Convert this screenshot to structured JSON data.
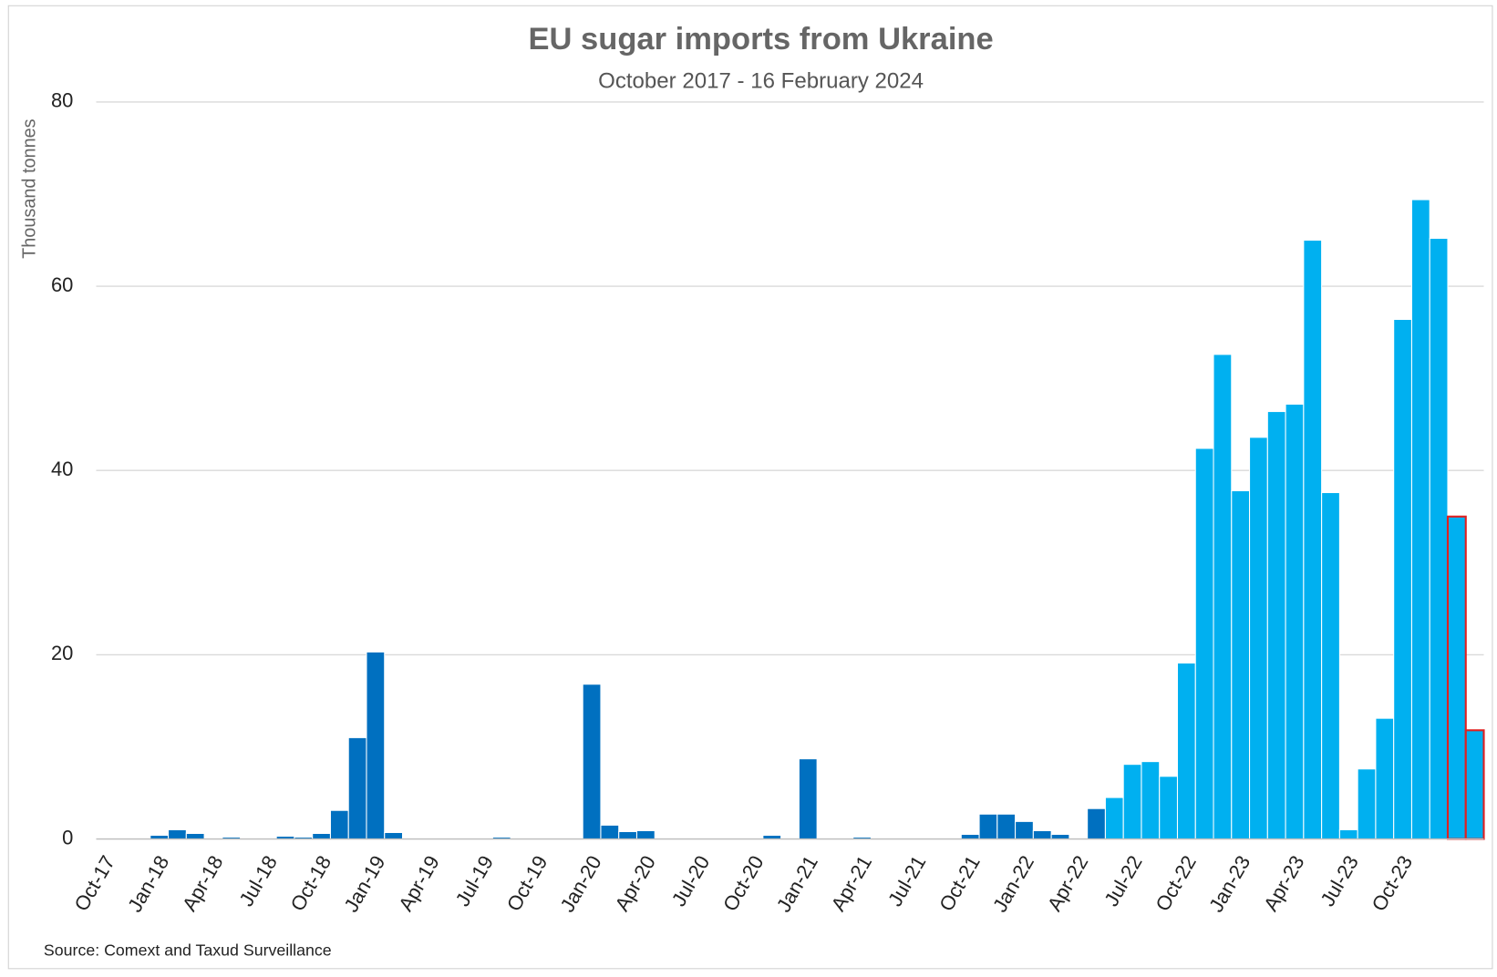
{
  "chart_data": {
    "type": "bar",
    "title": "EU sugar imports from Ukraine",
    "subtitle": "October 2017 - 16 February 2024",
    "y_label": "Thousand tonnes",
    "source": "Source: Comext and Taxud Surveillance",
    "categories": [
      "Oct-17",
      null,
      null,
      "Jan-18",
      null,
      null,
      "Apr-18",
      null,
      null,
      "Jul-18",
      null,
      null,
      "Oct-18",
      null,
      null,
      "Jan-19",
      null,
      null,
      "Apr-19",
      null,
      null,
      "Jul-19",
      null,
      null,
      "Oct-19",
      null,
      null,
      "Jan-20",
      null,
      null,
      "Apr-20",
      null,
      null,
      "Jul-20",
      null,
      null,
      "Oct-20",
      null,
      null,
      "Jan-21",
      null,
      null,
      "Apr-21",
      null,
      null,
      "Jul-21",
      null,
      null,
      "Oct-21",
      null,
      null,
      "Jan-22",
      null,
      null,
      "Apr-22",
      null,
      null,
      "Jul-22",
      null,
      null,
      "Oct-22",
      null,
      null,
      "Jan-23",
      null,
      null,
      "Apr-23",
      null,
      null,
      "Jul-23",
      null,
      null,
      "Oct-23",
      null,
      null,
      null,
      null
    ],
    "values": [
      0,
      0,
      0,
      0.4,
      1.0,
      0.6,
      0,
      0.2,
      0,
      0,
      0.3,
      0.2,
      0.6,
      3.1,
      11.0,
      20.3,
      0.7,
      0,
      0,
      0,
      0,
      0,
      0.2,
      0,
      0,
      0,
      0,
      16.8,
      1.5,
      0.8,
      0.9,
      0,
      0,
      0,
      0,
      0,
      0,
      0.4,
      0,
      8.7,
      0,
      0,
      0.2,
      0,
      0,
      0,
      0,
      0,
      0.5,
      2.7,
      2.7,
      1.9,
      0.9,
      0.5,
      0,
      3.3,
      4.5,
      8.1,
      8.4,
      6.8,
      19.1,
      42.4,
      52.6,
      37.8,
      43.6,
      46.4,
      47.2,
      65.0,
      37.6,
      1.0,
      7.6,
      13.1,
      56.4,
      69.4,
      65.2,
      35.0,
      11.8
    ],
    "colors": [
      "#0070c0",
      "#0070c0",
      "#0070c0",
      "#0070c0",
      "#0070c0",
      "#0070c0",
      "#0070c0",
      "#0070c0",
      "#0070c0",
      "#0070c0",
      "#0070c0",
      "#0070c0",
      "#0070c0",
      "#0070c0",
      "#0070c0",
      "#0070c0",
      "#0070c0",
      "#0070c0",
      "#0070c0",
      "#0070c0",
      "#0070c0",
      "#0070c0",
      "#0070c0",
      "#0070c0",
      "#0070c0",
      "#0070c0",
      "#0070c0",
      "#0070c0",
      "#0070c0",
      "#0070c0",
      "#0070c0",
      "#0070c0",
      "#0070c0",
      "#0070c0",
      "#0070c0",
      "#0070c0",
      "#0070c0",
      "#0070c0",
      "#0070c0",
      "#0070c0",
      "#0070c0",
      "#0070c0",
      "#0070c0",
      "#0070c0",
      "#0070c0",
      "#0070c0",
      "#0070c0",
      "#0070c0",
      "#0070c0",
      "#0070c0",
      "#0070c0",
      "#0070c0",
      "#0070c0",
      "#0070c0",
      "#0070c0",
      "#0070c0",
      "#00b0f0",
      "#00b0f0",
      "#00b0f0",
      "#00b0f0",
      "#00b0f0",
      "#00b0f0",
      "#00b0f0",
      "#00b0f0",
      "#00b0f0",
      "#00b0f0",
      "#00b0f0",
      "#00b0f0",
      "#00b0f0",
      "#00b0f0",
      "#00b0f0",
      "#00b0f0",
      "#00b0f0",
      "#00b0f0",
      "#00b0f0",
      "#00b0f0",
      "#00b0f0"
    ],
    "edge_colors": [
      null,
      null,
      null,
      null,
      null,
      null,
      null,
      null,
      null,
      null,
      null,
      null,
      null,
      null,
      null,
      null,
      null,
      null,
      null,
      null,
      null,
      null,
      null,
      null,
      null,
      null,
      null,
      null,
      null,
      null,
      null,
      null,
      null,
      null,
      null,
      null,
      null,
      null,
      null,
      null,
      null,
      null,
      null,
      null,
      null,
      null,
      null,
      null,
      null,
      null,
      null,
      null,
      null,
      null,
      null,
      null,
      null,
      null,
      null,
      null,
      null,
      null,
      null,
      null,
      null,
      null,
      null,
      null,
      null,
      null,
      null,
      null,
      null,
      null,
      null,
      "#e02020",
      "#e02020"
    ],
    "ylim": [
      0,
      80
    ],
    "yticks": [
      0,
      20,
      40,
      60,
      80
    ],
    "grid": true
  }
}
